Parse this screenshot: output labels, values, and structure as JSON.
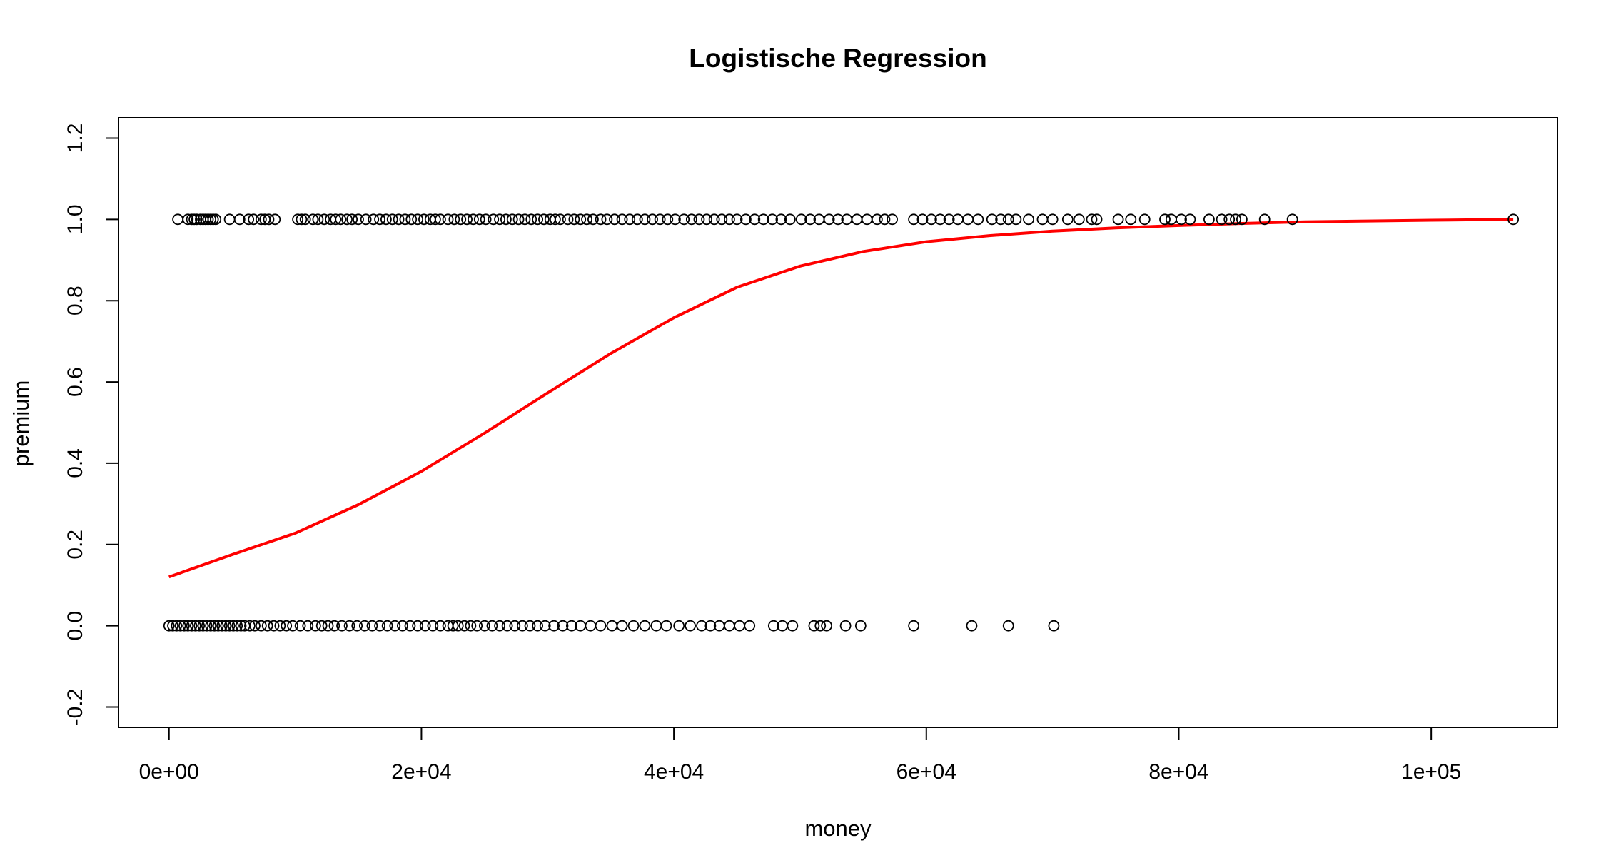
{
  "chart_data": {
    "type": "scatter",
    "title": "Logistische Regression",
    "xlabel": "money",
    "ylabel": "premium",
    "xlim": [
      -4000,
      110000
    ],
    "ylim": [
      -0.25,
      1.25
    ],
    "x_ticks": [
      {
        "value": 0,
        "label": "0e+00"
      },
      {
        "value": 20000,
        "label": "2e+04"
      },
      {
        "value": 40000,
        "label": "4e+04"
      },
      {
        "value": 60000,
        "label": "6e+04"
      },
      {
        "value": 80000,
        "label": "8e+04"
      },
      {
        "value": 100000,
        "label": "1e+05"
      }
    ],
    "y_ticks": [
      {
        "value": -0.2,
        "label": "-0.2"
      },
      {
        "value": 0.0,
        "label": "0.0"
      },
      {
        "value": 0.2,
        "label": "0.2"
      },
      {
        "value": 0.4,
        "label": "0.4"
      },
      {
        "value": 0.6,
        "label": "0.6"
      },
      {
        "value": 0.8,
        "label": "0.8"
      },
      {
        "value": 1.0,
        "label": "1.0"
      },
      {
        "value": 1.2,
        "label": "1.2"
      }
    ],
    "grid": false,
    "legend": "none",
    "series": [
      {
        "kind": "points",
        "y": 1,
        "color": "#000000",
        "x": [
          700,
          1500,
          1800,
          2000,
          2200,
          2500,
          2700,
          2900,
          3100,
          3300,
          3500,
          3700,
          4800,
          5600,
          6300,
          6700,
          7300,
          7600,
          7900,
          8400,
          10200,
          10500,
          10800,
          11400,
          11800,
          12300,
          12800,
          13200,
          13600,
          14100,
          14500,
          15000,
          15600,
          16200,
          16700,
          17200,
          17700,
          18200,
          18700,
          19200,
          19700,
          20200,
          20700,
          21100,
          21500,
          22100,
          22600,
          23100,
          23600,
          24100,
          24600,
          25100,
          25700,
          26200,
          26700,
          27200,
          27700,
          28200,
          28700,
          29200,
          29700,
          30200,
          30600,
          31000,
          31600,
          32100,
          32600,
          33100,
          33600,
          34200,
          34700,
          35300,
          35900,
          36500,
          37100,
          37700,
          38300,
          38900,
          39500,
          40100,
          40800,
          41400,
          42000,
          42600,
          43200,
          43800,
          44400,
          45000,
          45700,
          46400,
          47100,
          47800,
          48500,
          49200,
          50100,
          50800,
          51500,
          52300,
          53000,
          53700,
          54500,
          55300,
          56100,
          56700,
          57300,
          59000,
          59700,
          60400,
          61100,
          61800,
          62500,
          63300,
          64100,
          65200,
          65900,
          66500,
          67100,
          68100,
          69200,
          70000,
          71200,
          72100,
          73100,
          73500,
          75200,
          76200,
          77300,
          78900,
          79400,
          80200,
          80900,
          82400,
          83400,
          84000,
          84500,
          85000,
          86800,
          89000,
          106500
        ]
      },
      {
        "kind": "points",
        "y": 0,
        "color": "#000000",
        "x": [
          0,
          300,
          600,
          900,
          1200,
          1500,
          1800,
          2100,
          2400,
          2700,
          3000,
          3300,
          3600,
          3900,
          4200,
          4500,
          4800,
          5100,
          5400,
          5700,
          6000,
          6400,
          6800,
          7300,
          7800,
          8300,
          8800,
          9300,
          9800,
          10400,
          11000,
          11600,
          12100,
          12600,
          13100,
          13700,
          14300,
          14900,
          15500,
          16100,
          16700,
          17300,
          17900,
          18500,
          19100,
          19700,
          20300,
          20900,
          21500,
          22100,
          22500,
          22900,
          23400,
          23900,
          24400,
          25000,
          25600,
          26200,
          26800,
          27400,
          28000,
          28600,
          29200,
          29800,
          30500,
          31200,
          31900,
          32600,
          33400,
          34200,
          35100,
          35900,
          36800,
          37700,
          38600,
          39400,
          40400,
          41300,
          42200,
          42900,
          43600,
          44400,
          45200,
          46000,
          47900,
          48600,
          49400,
          51100,
          51600,
          52100,
          53600,
          54800,
          59000,
          63600,
          66500,
          70100
        ]
      },
      {
        "kind": "curve",
        "name": "",
        "color": "#ff0000",
        "x": [
          0,
          5000,
          10000,
          15000,
          20000,
          25000,
          30000,
          35000,
          40000,
          45000,
          50000,
          55000,
          60000,
          65000,
          70000,
          75000,
          80000,
          85000,
          90000,
          95000,
          100000,
          106500
        ],
        "y": [
          0.12,
          0.175,
          0.228,
          0.298,
          0.38,
          0.474,
          0.573,
          0.67,
          0.758,
          0.833,
          0.885,
          0.921,
          0.945,
          0.96,
          0.971,
          0.979,
          0.985,
          0.99,
          0.994,
          0.996,
          0.998,
          1.0
        ]
      }
    ]
  }
}
